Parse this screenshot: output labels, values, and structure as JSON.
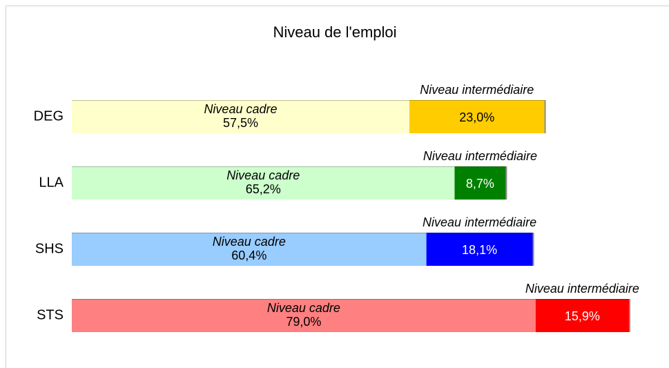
{
  "chart_data": {
    "type": "stacked_bar_horizontal",
    "title": "Niveau de l'emploi",
    "categories": [
      "DEG",
      "LLA",
      "SHS",
      "STS"
    ],
    "series": [
      {
        "name": "Niveau cadre",
        "color": [
          "#ffffcc",
          "#ccffcc",
          "#99ccff",
          "#ff8080"
        ],
        "values": [
          57.5,
          65.2,
          60.4,
          79.0
        ],
        "value_labels": [
          "57,5%",
          "65,2%",
          "60,4%",
          "79,0%"
        ]
      },
      {
        "name": "Niveau intermédiaire",
        "color": [
          "#ffcc00",
          "#008000",
          "#0000ff",
          "#ff0000"
        ],
        "values": [
          23.0,
          8.7,
          18.1,
          15.9
        ],
        "value_labels": [
          "23,0%",
          "8,7%",
          "18,1%",
          "15,9%"
        ]
      }
    ]
  }
}
